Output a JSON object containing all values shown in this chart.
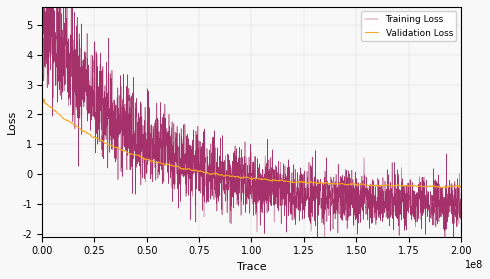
{
  "title": "",
  "xlabel": "Trace",
  "ylabel": "Loss",
  "xlim": [
    0,
    200000000.0
  ],
  "ylim": [
    -2.1,
    5.6
  ],
  "xticks": [
    0,
    25000000.0,
    50000000.0,
    75000000.0,
    100000000.0,
    125000000.0,
    150000000.0,
    175000000.0,
    200000000.0
  ],
  "xtick_labels": [
    "0.00",
    "0.25",
    "0.50",
    "0.75",
    "1.00",
    "1.25",
    "1.50",
    "1.75",
    "2.00"
  ],
  "yticks": [
    -2,
    -1,
    0,
    1,
    2,
    3,
    4,
    5
  ],
  "training_color": "#9b1b5a",
  "validation_color": "#f5a623",
  "training_label": "Training Loss",
  "validation_label": "Validation Loss",
  "n_points": 3000,
  "train_start": 5.3,
  "train_decay_rate": 4.5,
  "train_final_level": -1.05,
  "val_start": 2.5,
  "val_decay_rate": 4.5,
  "val_final_level": -0.45,
  "background_color": "#f8f8f8"
}
